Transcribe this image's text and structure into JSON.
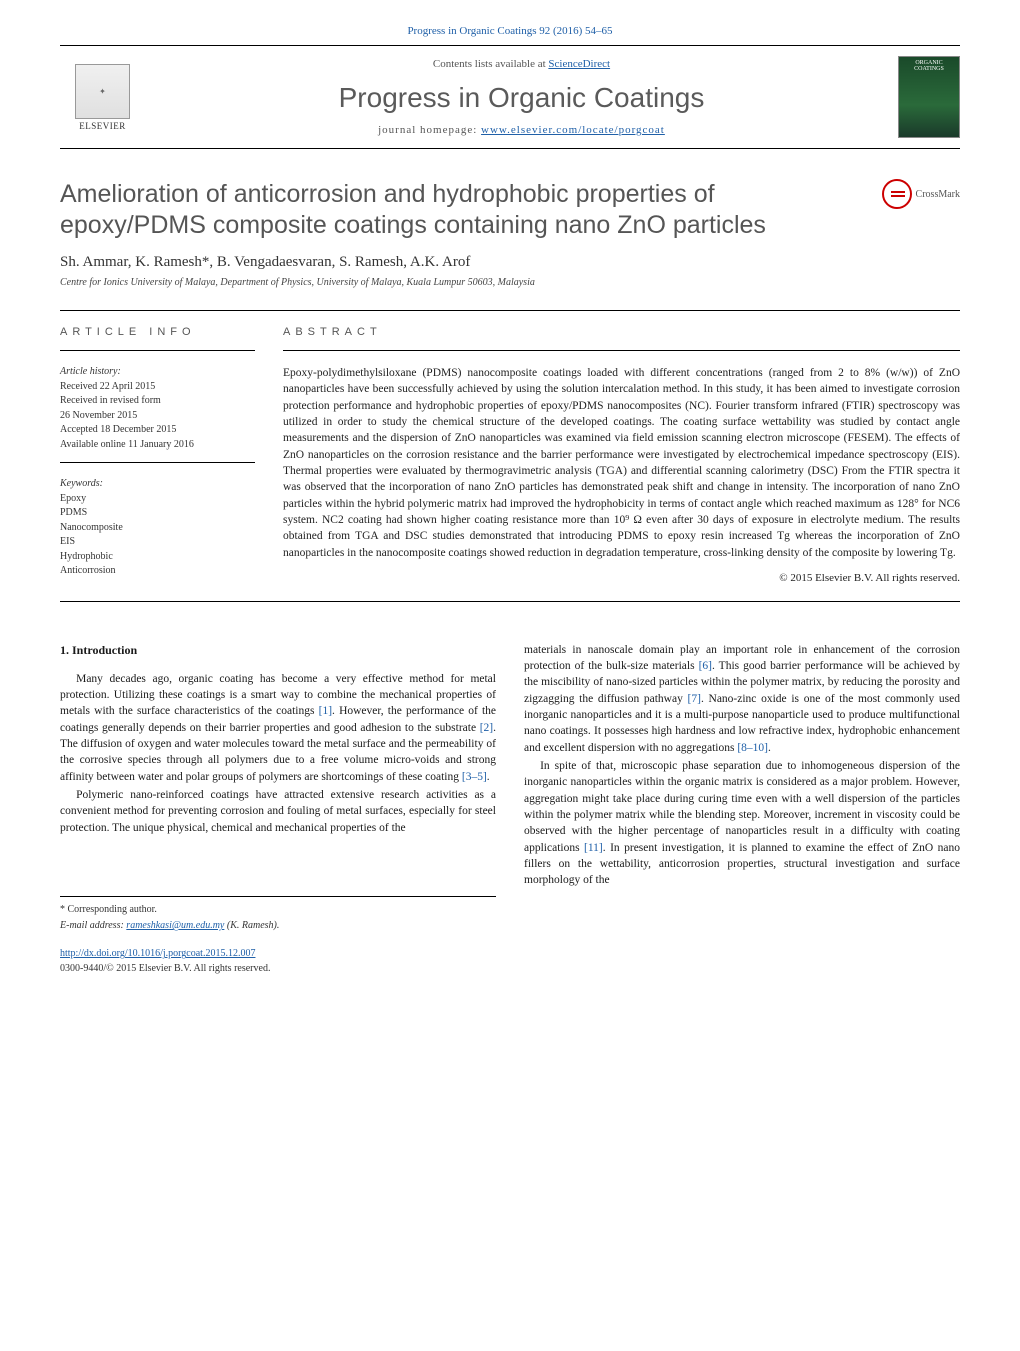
{
  "citation": "Progress in Organic Coatings 92 (2016) 54–65",
  "header": {
    "contents_prefix": "Contents lists available at ",
    "contents_link": "ScienceDirect",
    "journal_name": "Progress in Organic Coatings",
    "homepage_prefix": "journal homepage: ",
    "homepage_url": "www.elsevier.com/locate/porgcoat",
    "publisher": "ELSEVIER",
    "cover_text_top": "ORGANIC",
    "cover_text_bottom": "COATINGS"
  },
  "crossmark_label": "CrossMark",
  "title": "Amelioration of anticorrosion and hydrophobic properties of epoxy/PDMS composite coatings containing nano ZnO particles",
  "authors": "Sh. Ammar, K. Ramesh*, B. Vengadaesvaran, S. Ramesh, A.K. Arof",
  "affiliation": "Centre for Ionics University of Malaya, Department of Physics, University of Malaya, Kuala Lumpur 50603, Malaysia",
  "article_info": {
    "heading": "article info",
    "history_label": "Article history:",
    "received": "Received 22 April 2015",
    "revised1": "Received in revised form",
    "revised2": "26 November 2015",
    "accepted": "Accepted 18 December 2015",
    "online": "Available online 11 January 2016",
    "keywords_label": "Keywords:",
    "keywords": [
      "Epoxy",
      "PDMS",
      "Nanocomposite",
      "EIS",
      "Hydrophobic",
      "Anticorrosion"
    ]
  },
  "abstract": {
    "heading": "abstract",
    "text": "Epoxy-polydimethylsiloxane (PDMS) nanocomposite coatings loaded with different concentrations (ranged from 2 to 8% (w/w)) of ZnO nanoparticles have been successfully achieved by using the solution intercalation method. In this study, it has been aimed to investigate corrosion protection performance and hydrophobic properties of epoxy/PDMS nanocomposites (NC). Fourier transform infrared (FTIR) spectroscopy was utilized in order to study the chemical structure of the developed coatings. The coating surface wettability was studied by contact angle measurements and the dispersion of ZnO nanoparticles was examined via field emission scanning electron microscope (FESEM). The effects of ZnO nanoparticles on the corrosion resistance and the barrier performance were investigated by electrochemical impedance spectroscopy (EIS). Thermal properties were evaluated by thermogravimetric analysis (TGA) and differential scanning calorimetry (DSC) From the FTIR spectra it was observed that the incorporation of nano ZnO particles has demonstrated peak shift and change in intensity. The incorporation of nano ZnO particles within the hybrid polymeric matrix had improved the hydrophobicity in terms of contact angle which reached maximum as 128° for NC6 system. NC2 coating had shown higher coating resistance more than 10⁹ Ω even after 30 days of exposure in electrolyte medium. The results obtained from TGA and DSC studies demonstrated that introducing PDMS to epoxy resin increased Tg whereas the incorporation of ZnO nanoparticles in the nanocomposite coatings showed reduction in degradation temperature, cross-linking density of the composite by lowering Tg.",
    "copyright": "© 2015 Elsevier B.V. All rights reserved."
  },
  "body": {
    "section_number": "1.",
    "section_title": "Introduction",
    "p1": "Many decades ago, organic coating has become a very effective method for metal protection. Utilizing these coatings is a smart way to combine the mechanical properties of metals with the surface characteristics of the coatings [1]. However, the performance of the coatings generally depends on their barrier properties and good adhesion to the substrate [2]. The diffusion of oxygen and water molecules toward the metal surface and the permeability of the corrosive species through all polymers due to a free volume micro-voids and strong affinity between water and polar groups of polymers are shortcomings of these coating [3–5].",
    "p2": "Polymeric nano-reinforced coatings have attracted extensive research activities as a convenient method for preventing corrosion and fouling of metal surfaces, especially for steel protection. The unique physical, chemical and mechanical properties of the",
    "p3": "materials in nanoscale domain play an important role in enhancement of the corrosion protection of the bulk-size materials [6]. This good barrier performance will be achieved by the miscibility of nano-sized particles within the polymer matrix, by reducing the porosity and zigzagging the diffusion pathway [7]. Nano-zinc oxide is one of the most commonly used inorganic nanoparticles and it is a multi-purpose nanoparticle used to produce multifunctional nano coatings. It possesses high hardness and low refractive index, hydrophobic enhancement and excellent dispersion with no aggregations [8–10].",
    "p4": "In spite of that, microscopic phase separation due to inhomogeneous dispersion of the inorganic nanoparticles within the organic matrix is considered as a major problem. However, aggregation might take place during curing time even with a well dispersion of the particles within the polymer matrix while the blending step. Moreover, increment in viscosity could be observed with the higher percentage of nanoparticles result in a difficulty with coating applications [11]. In present investigation, it is planned to examine the effect of ZnO nano fillers on the wettability, anticorrosion properties, structural investigation and surface morphology of the"
  },
  "footer": {
    "corresponding": "* Corresponding author.",
    "email_label": "E-mail address: ",
    "email": "rameshkasi@um.edu.my",
    "email_name": " (K. Ramesh).",
    "doi_url": "http://dx.doi.org/10.1016/j.porgcoat.2015.12.007",
    "issn": "0300-9440/© 2015 Elsevier B.V. All rights reserved."
  },
  "colors": {
    "link": "#2060a8",
    "heading_gray": "#555555",
    "text": "#1a1a1a"
  }
}
